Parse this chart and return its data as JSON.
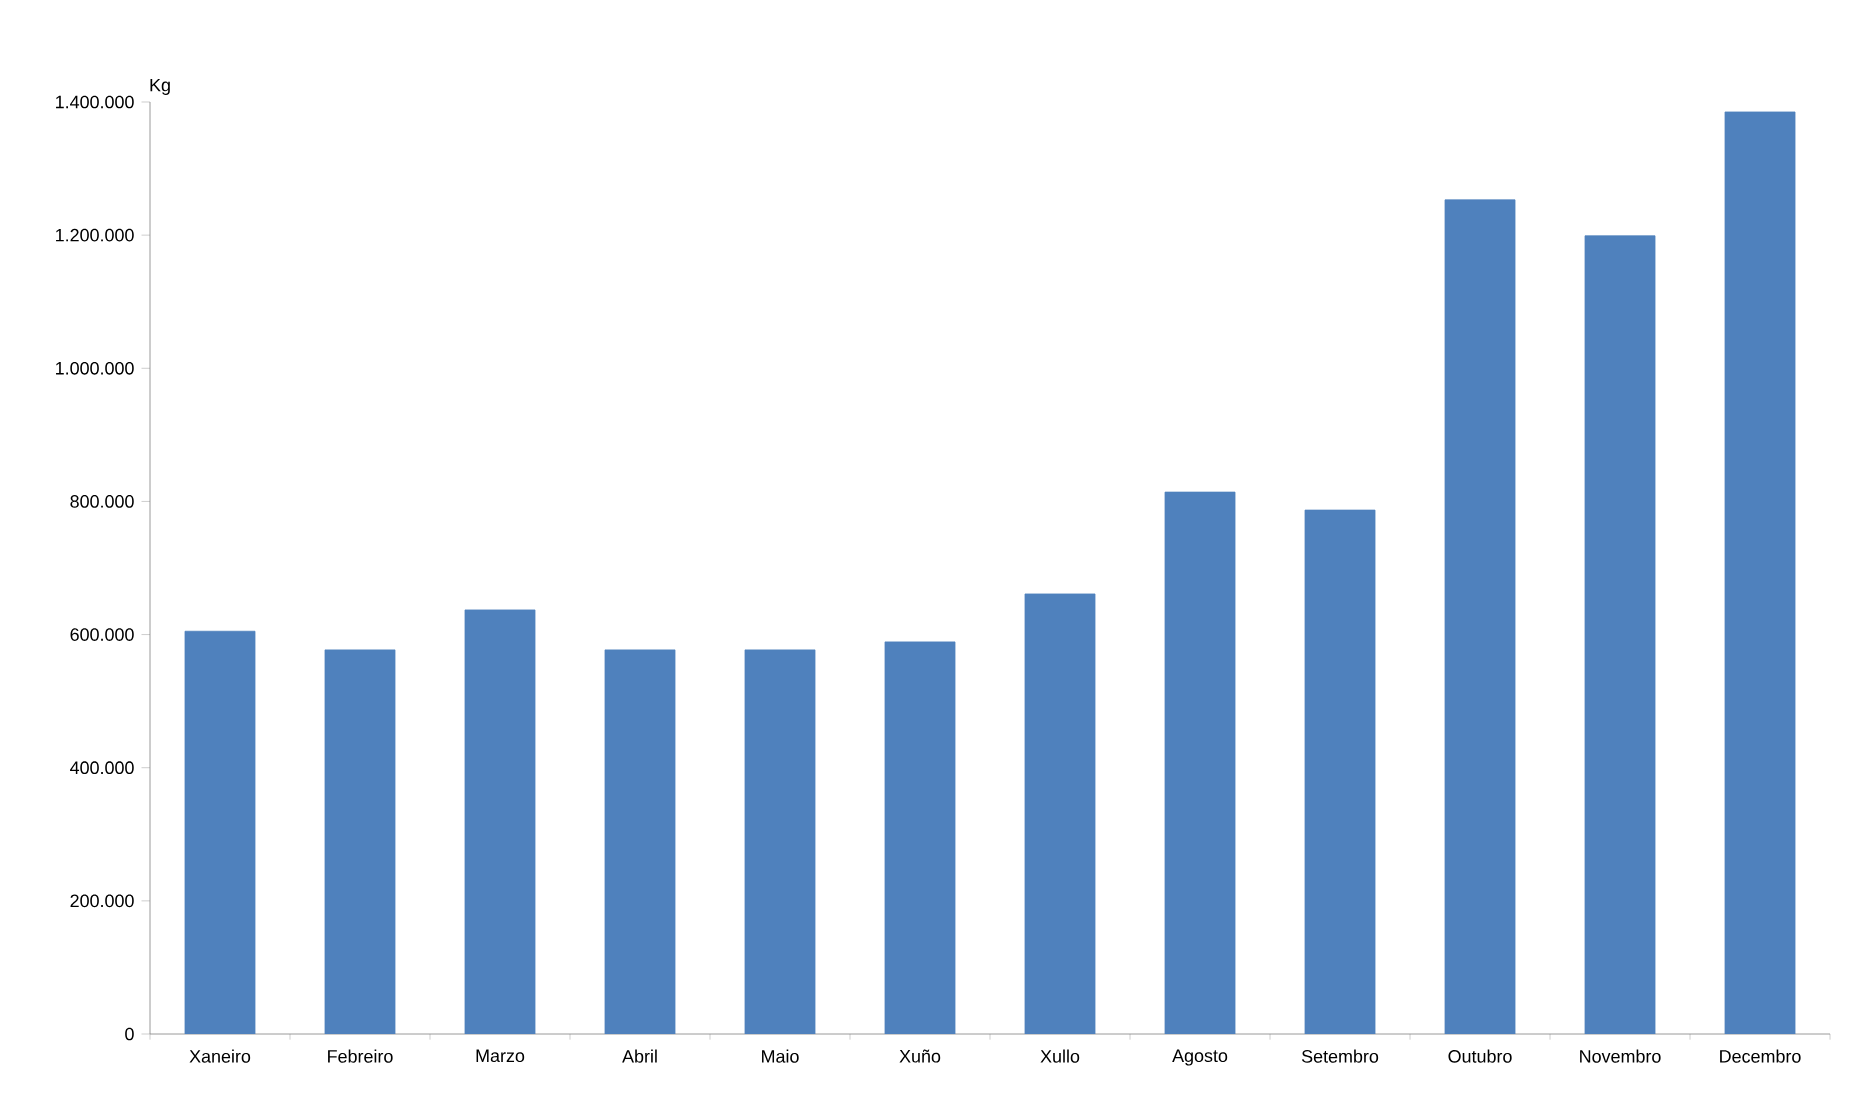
{
  "chart_data": {
    "type": "bar",
    "ylabel": "Kg",
    "categories": [
      "Xaneiro",
      "Febreiro",
      "Marzo",
      "Abril",
      "Maio",
      "Xuño",
      "Xullo",
      "Agosto",
      "Setembro",
      "Outubro",
      "Novembro",
      "Decembro"
    ],
    "values": [
      605000,
      577000,
      637000,
      577000,
      577000,
      589000,
      661000,
      814000,
      787000,
      1253000,
      1199000,
      1385000
    ],
    "color": "#4f81bd",
    "ylim": [
      0,
      1400000
    ],
    "yticks": [
      {
        "value": 0,
        "label": "0"
      },
      {
        "value": 200000,
        "label": "200.000"
      },
      {
        "value": 400000,
        "label": "400.000"
      },
      {
        "value": 600000,
        "label": "600.000"
      },
      {
        "value": 800000,
        "label": "800.000"
      },
      {
        "value": 1000000,
        "label": "1.000.000"
      },
      {
        "value": 1200000,
        "label": "1.200.000"
      },
      {
        "value": 1400000,
        "label": "1.400.000"
      }
    ],
    "grid": false
  }
}
